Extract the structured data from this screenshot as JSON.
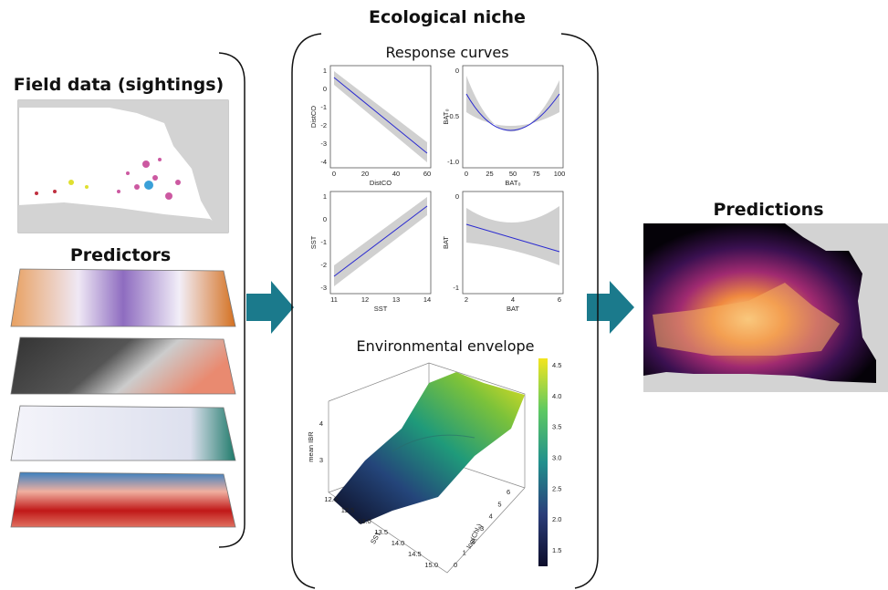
{
  "field_data": {
    "title": "Field data (sightings)"
  },
  "predictors": {
    "title": "Predictors"
  },
  "niche": {
    "title": "Ecological niche",
    "response_curves": {
      "title": "Response curves",
      "plots": [
        {
          "x_label": "DistCO",
          "y_label": "DistCO",
          "xticks": [
            "0",
            "20",
            "40",
            "60"
          ],
          "yticks": [
            "1",
            "0",
            "-1",
            "-2",
            "-3",
            "-4"
          ]
        },
        {
          "x_label": "BAT₀",
          "y_label": "BAT₀",
          "xticks": [
            "0",
            "25",
            "50",
            "75",
            "100"
          ],
          "yticks": [
            "0",
            "-0.5",
            "-1.0"
          ]
        },
        {
          "x_label": "SST",
          "y_label": "SST",
          "xticks": [
            "11",
            "12",
            "13",
            "14"
          ],
          "yticks": [
            "1",
            "0",
            "-1",
            "-2",
            "-3"
          ]
        },
        {
          "x_label": "BAT",
          "y_label": "BAT",
          "xticks": [
            "2",
            "4",
            "6"
          ],
          "yticks": [
            "0",
            "-1"
          ]
        }
      ]
    },
    "envelope": {
      "title": "Environmental envelope",
      "z_label": "mean IBR",
      "x_label": "SST",
      "y_label": "log(Chlₐ)",
      "zticks": [
        "4",
        "3"
      ],
      "xticks": [
        "12.0",
        "12.5",
        "13.0",
        "13.5",
        "14.0",
        "14.5",
        "15.0"
      ],
      "yticks": [
        "0",
        "1",
        "2",
        "3",
        "4",
        "5",
        "6"
      ],
      "colorbar_ticks": [
        "4.5",
        "4.0",
        "3.5",
        "3.0",
        "2.5",
        "2.0",
        "1.5"
      ]
    }
  },
  "predictions": {
    "title": "Predictions"
  }
}
